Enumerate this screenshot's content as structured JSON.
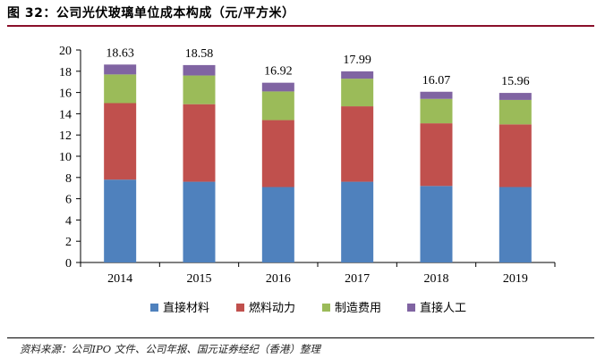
{
  "title": "图 32：公司光伏玻璃单位成本构成（元/平方米）",
  "source": "资料来源：公司IPO 文件、公司年报、国元证券经纪（香港）整理",
  "chart_data": {
    "type": "bar",
    "stacked": true,
    "categories": [
      "2014",
      "2015",
      "2016",
      "2017",
      "2018",
      "2019"
    ],
    "totals": [
      "18.63",
      "18.58",
      "16.92",
      "17.99",
      "16.07",
      "15.96"
    ],
    "series": [
      {
        "name": "直接材料",
        "color": "#4f81bd",
        "values": [
          7.8,
          7.6,
          7.1,
          7.6,
          7.2,
          7.1
        ]
      },
      {
        "name": "燃料动力",
        "color": "#c0504d",
        "values": [
          7.2,
          7.3,
          6.3,
          7.1,
          5.9,
          5.9
        ]
      },
      {
        "name": "制造费用",
        "color": "#9bbb59",
        "values": [
          2.7,
          2.7,
          2.7,
          2.6,
          2.3,
          2.3
        ]
      },
      {
        "name": "直接人工",
        "color": "#8064a2",
        "values": [
          0.93,
          0.98,
          0.82,
          0.69,
          0.67,
          0.66
        ]
      }
    ],
    "ylim": [
      0,
      20
    ],
    "yticks": [
      "0",
      "2",
      "4",
      "6",
      "8",
      "10",
      "12",
      "14",
      "16",
      "18",
      "20"
    ],
    "grid": false,
    "legend_position": "bottom"
  }
}
